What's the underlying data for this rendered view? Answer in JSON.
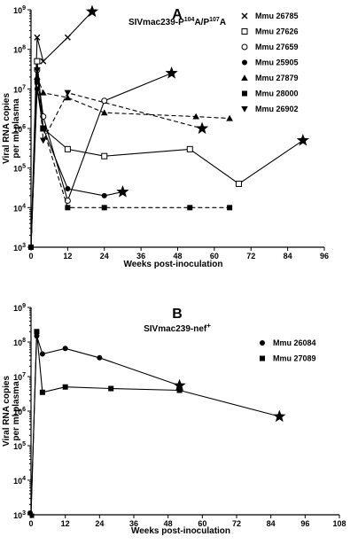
{
  "chart_data": [
    {
      "type": "line",
      "panel_label": "A",
      "title": "SIVmac239-P104A/P107A",
      "title_parts": {
        "base": "SIVmac239-P",
        "sup1": "104",
        "mid": "A/P",
        "sup2": "107",
        "end": "A"
      },
      "xlabel": "Weeks post-inoculation",
      "ylabel": "Viral RNA copies per ml plasma",
      "ylabel_lines": [
        "Viral RNA copies",
        "per ml plasma"
      ],
      "xlim": [
        0,
        96
      ],
      "ylim_log10": [
        3,
        9
      ],
      "xticks": [
        "0",
        "12",
        "24",
        "36",
        "48",
        "60",
        "72",
        "84",
        "96"
      ],
      "yticks": [
        {
          "base": "10",
          "exp": "3"
        },
        {
          "base": "10",
          "exp": "4"
        },
        {
          "base": "10",
          "exp": "5"
        },
        {
          "base": "10",
          "exp": "6"
        },
        {
          "base": "10",
          "exp": "7"
        },
        {
          "base": "10",
          "exp": "8"
        },
        {
          "base": "10",
          "exp": "9"
        }
      ],
      "legend_position": "top-right",
      "series": [
        {
          "name": "Mmu 26785",
          "marker": "x",
          "dash": false,
          "x": [
            0,
            2,
            4,
            12,
            20
          ],
          "y": [
            1000,
            200000000,
            50000000,
            200000000,
            900000000
          ],
          "end_star": true
        },
        {
          "name": "Mmu 27626",
          "marker": "square-open",
          "dash": false,
          "x": [
            0,
            2,
            4,
            12,
            24,
            52,
            68,
            89
          ],
          "y": [
            1000,
            50000000,
            1000000,
            300000,
            200000,
            300000,
            40000,
            500000
          ],
          "end_star": true
        },
        {
          "name": "Mmu 27659",
          "marker": "circle-open",
          "dash": false,
          "x": [
            0,
            2,
            4,
            12,
            24,
            46
          ],
          "y": [
            1000,
            30000000,
            2000000,
            15000,
            5000000,
            25000000
          ],
          "end_star": true
        },
        {
          "name": "Mmu 25905",
          "marker": "circle-filled",
          "dash": false,
          "x": [
            0,
            2,
            4,
            12,
            24,
            30
          ],
          "y": [
            1000,
            10000000,
            1000000,
            30000,
            20000,
            25000
          ],
          "end_star": true
        },
        {
          "name": "Mmu 27879",
          "marker": "triangle-up",
          "dash": true,
          "x": [
            0,
            2,
            4,
            12,
            24,
            54,
            65
          ],
          "y": [
            1000,
            20000000,
            8000000,
            6000000,
            2500000,
            2000000,
            1800000
          ],
          "end_star": false
        },
        {
          "name": "Mmu 28000",
          "marker": "square-filled",
          "dash": true,
          "x": [
            0,
            2,
            4,
            12,
            24,
            52,
            65
          ],
          "y": [
            1000,
            15000000,
            1000000,
            10000,
            10000,
            10000,
            10000
          ],
          "end_star": false
        },
        {
          "name": "Mmu 26902",
          "marker": "triangle-down",
          "dash": true,
          "x": [
            0,
            2,
            4,
            12,
            56
          ],
          "y": [
            1000,
            30000000,
            500000,
            8000000,
            1000000
          ],
          "end_star": true
        }
      ]
    },
    {
      "type": "line",
      "panel_label": "B",
      "title": "SIVmac239-nef+",
      "title_parts": {
        "base": "SIVmac239-nef",
        "sup": "+"
      },
      "xlabel": "Weeks post-inoculation",
      "ylabel": "Viral RNA copies per ml plasma",
      "ylabel_lines": [
        "Viral RNA copies",
        "per ml plasma"
      ],
      "xlim": [
        0,
        108
      ],
      "ylim_log10": [
        3,
        9
      ],
      "xticks": [
        "0",
        "12",
        "24",
        "36",
        "48",
        "60",
        "72",
        "84",
        "96",
        "108"
      ],
      "yticks": [
        {
          "base": "10",
          "exp": "3"
        },
        {
          "base": "10",
          "exp": "4"
        },
        {
          "base": "10",
          "exp": "5"
        },
        {
          "base": "10",
          "exp": "6"
        },
        {
          "base": "10",
          "exp": "7"
        },
        {
          "base": "10",
          "exp": "8"
        },
        {
          "base": "10",
          "exp": "9"
        }
      ],
      "legend_position": "top-right",
      "series": [
        {
          "name": "Mmu 26084",
          "marker": "circle-filled",
          "dash": false,
          "x": [
            0,
            2,
            4,
            12,
            24,
            52
          ],
          "y": [
            1000,
            150000000,
            45000000,
            65000000,
            35000000,
            5500000
          ],
          "end_star": true
        },
        {
          "name": "Mmu 27089",
          "marker": "square-filled",
          "dash": false,
          "x": [
            0,
            2,
            4,
            12,
            28,
            52,
            87
          ],
          "y": [
            1000,
            200000000,
            3500000,
            5000000,
            4500000,
            4000000,
            700000
          ],
          "end_star": true
        }
      ]
    }
  ]
}
